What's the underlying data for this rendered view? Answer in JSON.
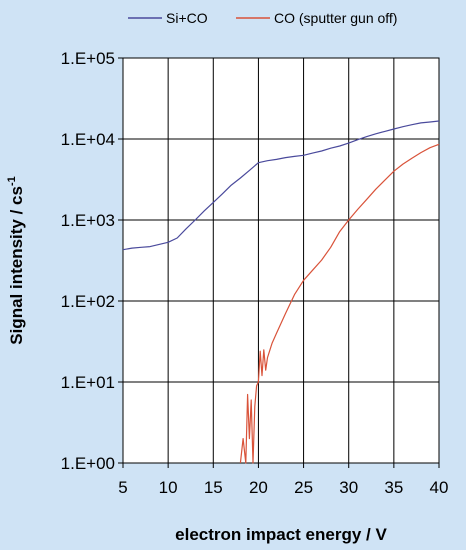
{
  "chart_data": {
    "type": "line",
    "title": "",
    "xlabel": "electron impact energy / V",
    "ylabel": "Signal intensity / cs",
    "ylabel_sup": "-1",
    "xlim": [
      5,
      40
    ],
    "ylim": [
      1,
      100000
    ],
    "yscale": "log",
    "grid": true,
    "legend": "top-right",
    "x_ticks": [
      "5",
      "10",
      "15",
      "20",
      "25",
      "30",
      "35",
      "40"
    ],
    "y_ticks": [
      "1.E+00",
      "1.E+01",
      "1.E+02",
      "1.E+03",
      "1.E+04",
      "1.E+05"
    ],
    "series": [
      {
        "name": "Si+CO",
        "color": "#4a4a9c",
        "x": [
          5,
          6,
          7,
          8,
          9,
          10,
          11,
          12,
          13,
          14,
          15,
          16,
          17,
          18,
          19,
          20,
          21,
          22,
          23,
          24,
          25,
          26,
          27,
          28,
          29,
          30,
          31,
          32,
          33,
          34,
          35,
          36,
          37,
          38,
          39,
          40
        ],
        "y": [
          430,
          450,
          460,
          470,
          500,
          530,
          600,
          780,
          1000,
          1300,
          1650,
          2100,
          2700,
          3300,
          4100,
          5100,
          5400,
          5600,
          5900,
          6100,
          6300,
          6700,
          7100,
          7700,
          8200,
          8900,
          9800,
          10700,
          11600,
          12400,
          13300,
          14200,
          15000,
          15800,
          16200,
          16700
        ]
      },
      {
        "name": "CO (sputter gun off)",
        "color": "#d9533a",
        "x": [
          18,
          18.3,
          18.6,
          18.8,
          19.0,
          19.2,
          19.4,
          19.6,
          19.8,
          20.0,
          20.2,
          20.4,
          20.6,
          20.8,
          21.0,
          21.5,
          22,
          23,
          24,
          25,
          26,
          27,
          28,
          29,
          30,
          31,
          32,
          33,
          34,
          35,
          36,
          37,
          38,
          39,
          40
        ],
        "y": [
          1,
          2,
          1,
          7,
          2,
          6,
          1,
          5,
          9,
          10,
          24,
          12,
          25,
          14,
          20,
          30,
          40,
          70,
          120,
          180,
          240,
          320,
          460,
          720,
          1000,
          1350,
          1800,
          2400,
          3100,
          4000,
          4900,
          5800,
          6800,
          7800,
          8600
        ]
      }
    ]
  }
}
